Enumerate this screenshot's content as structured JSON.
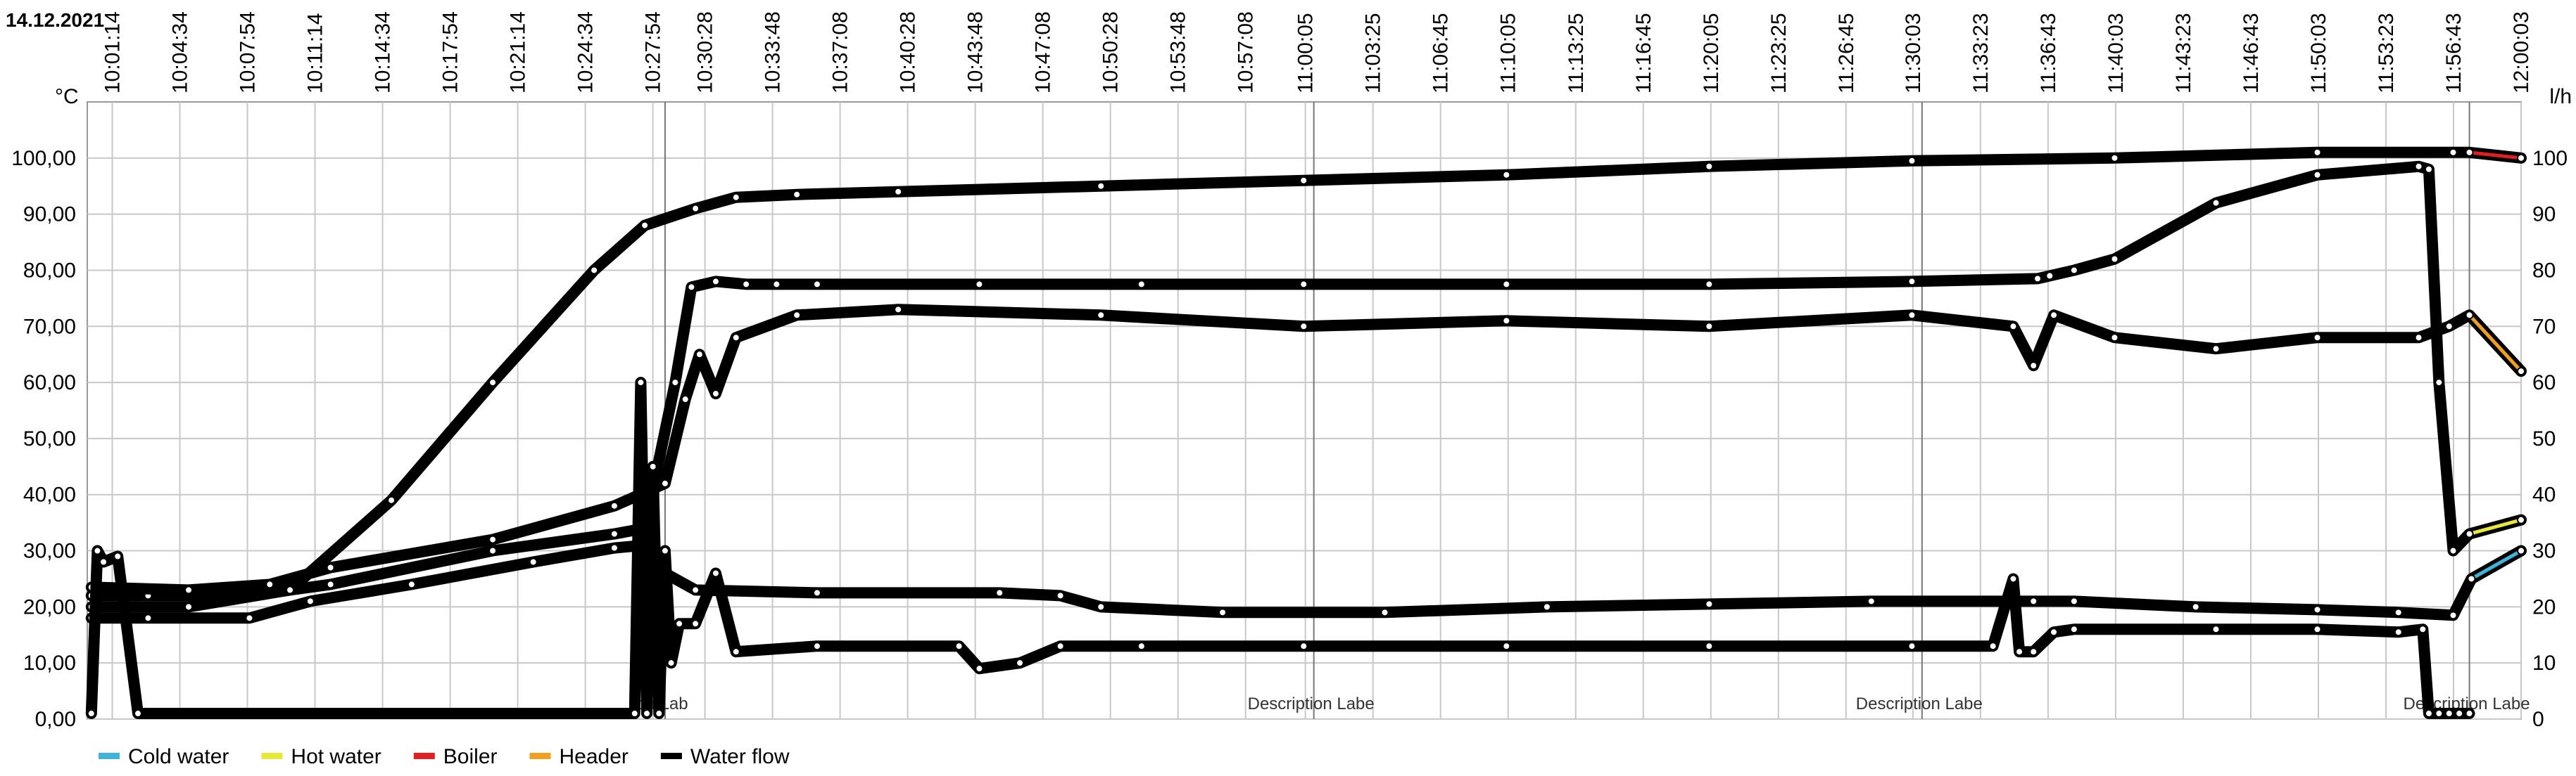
{
  "chart_data": {
    "type": "line",
    "date": "14.12.2021",
    "y_left_unit": "°C",
    "y_right_unit": "l/h",
    "ylim_left": [
      0,
      110
    ],
    "ylim_right": [
      0,
      110
    ],
    "y_left_ticks": [
      "0,00",
      "10,00",
      "20,00",
      "30,00",
      "40,00",
      "50,00",
      "60,00",
      "70,00",
      "80,00",
      "90,00",
      "100,00"
    ],
    "y_right_ticks": [
      "0",
      "10",
      "20",
      "30",
      "40",
      "50",
      "60",
      "70",
      "80",
      "90",
      "100"
    ],
    "x_ticks": [
      "10:01:14",
      "10:04:34",
      "10:07:54",
      "10:11:14",
      "10:14:34",
      "10:17:54",
      "10:21:14",
      "10:24:34",
      "10:27:54",
      "10:30:28",
      "10:33:48",
      "10:37:08",
      "10:40:28",
      "10:43:48",
      "10:47:08",
      "10:50:28",
      "10:53:48",
      "10:57:08",
      "11:00:05",
      "11:03:25",
      "11:06:45",
      "11:10:05",
      "11:13:25",
      "11:16:45",
      "11:20:05",
      "11:23:25",
      "11:26:45",
      "11:30:03",
      "11:33:23",
      "11:36:43",
      "11:40:03",
      "11:43:23",
      "11:46:43",
      "11:50:03",
      "11:53:23",
      "11:56:43",
      "12:00:03"
    ],
    "x_minutes": [
      1.233,
      4.567,
      7.9,
      11.233,
      14.567,
      17.9,
      21.233,
      24.567,
      27.9,
      30.467,
      33.8,
      37.133,
      40.467,
      43.8,
      47.133,
      50.467,
      53.8,
      57.133,
      60.083,
      63.417,
      66.75,
      70.083,
      73.417,
      76.75,
      80.083,
      83.417,
      86.75,
      90.05,
      93.383,
      96.717,
      100.05,
      103.383,
      106.717,
      110.05,
      113.383,
      116.717,
      120.05
    ],
    "grid": true,
    "description_labels": [
      "on Lab",
      "Description Labe",
      "Description Labe",
      "Description Labe"
    ],
    "description_minutes": [
      28.5,
      60.5,
      90.5,
      117.5
    ],
    "legend_position": "bottom-left",
    "series": [
      {
        "name": "Cold water",
        "color": "#3fb4d8",
        "x": [
          0.2,
          3,
          8,
          11,
          16,
          22,
          26,
          27.5,
          28.5,
          30,
          36,
          45,
          48,
          50,
          56,
          64,
          72,
          80,
          88,
          96,
          98,
          104,
          110,
          114,
          116.7,
          117.6,
          120.05
        ],
        "y": [
          18.0,
          18.0,
          18.0,
          21.0,
          24.0,
          28.0,
          30.5,
          31.0,
          26.0,
          23.0,
          22.5,
          22.5,
          22.0,
          20.0,
          19.0,
          19.0,
          20.0,
          20.5,
          21.0,
          21.0,
          21.0,
          20.0,
          19.5,
          19.0,
          18.5,
          25.0,
          30.0
        ]
      },
      {
        "name": "Hot water",
        "color": "#e8e83a",
        "x": [
          0.2,
          3,
          8,
          12,
          20,
          26,
          27.5,
          29,
          29.8,
          31,
          32.5,
          34,
          36,
          44,
          52,
          60,
          70,
          80,
          90,
          96.2,
          96.8,
          98,
          100,
          105,
          110,
          115,
          115.5,
          116,
          116.7,
          117.5,
          120.05
        ],
        "y": [
          22.0,
          22.0,
          22.0,
          24.0,
          30.0,
          33.0,
          34.0,
          60.0,
          77.0,
          78.0,
          77.5,
          77.5,
          77.5,
          77.5,
          77.5,
          77.5,
          77.5,
          77.5,
          78.0,
          78.5,
          79.0,
          80.0,
          82.0,
          92.0,
          97.0,
          98.5,
          98.0,
          60.0,
          30.0,
          33.0,
          35.5
        ]
      },
      {
        "name": "Boiler",
        "color": "#e02020",
        "x": [
          0.2,
          5,
          10,
          15,
          20,
          25,
          27.5,
          30,
          32,
          35,
          40,
          50,
          60,
          70,
          80,
          90,
          100,
          110,
          116.7,
          117.5,
          120.05
        ],
        "y": [
          20.0,
          20.0,
          23.0,
          39.0,
          60.0,
          80.0,
          88.0,
          91.0,
          93.0,
          93.5,
          94.0,
          95.0,
          96.0,
          97.0,
          98.5,
          99.5,
          100.0,
          101.0,
          101.0,
          101.0,
          100.0
        ]
      },
      {
        "name": "Header",
        "color": "#f0a020",
        "x": [
          0.2,
          5,
          9,
          12,
          20,
          26,
          28.5,
          29.5,
          30.2,
          31,
          32,
          35,
          40,
          50,
          60,
          70,
          80,
          90,
          95,
          96,
          97,
          100,
          105,
          110,
          115,
          116.5,
          117.5,
          120.05
        ],
        "y": [
          23.5,
          23.0,
          24.0,
          27.0,
          32.0,
          38.0,
          42.0,
          57.0,
          65.0,
          58.0,
          68.0,
          72.0,
          73.0,
          72.0,
          70.0,
          71.0,
          70.0,
          72.0,
          70.0,
          63.0,
          72.0,
          68.0,
          66.0,
          68.0,
          68.0,
          70.0,
          72.0,
          62.0
        ]
      },
      {
        "name": "Water flow",
        "color": "#000000",
        "x": [
          0.2,
          0.5,
          0.8,
          1.5,
          2.5,
          27,
          27.3,
          27.6,
          27.9,
          28.2,
          28.5,
          28.8,
          29.2,
          30,
          31,
          32,
          36,
          43,
          44,
          46,
          48,
          52,
          60,
          70,
          80,
          90,
          94,
          95,
          95.3,
          96,
          97,
          98,
          105,
          110,
          114,
          115.2,
          115.5,
          116,
          116.5,
          117,
          117.5
        ],
        "y": [
          1.0,
          30.0,
          28.0,
          29.0,
          1.0,
          1.0,
          60.0,
          1.0,
          45.0,
          1.0,
          30.0,
          10.0,
          17.0,
          17.0,
          26.0,
          12.0,
          13.0,
          13.0,
          9.0,
          10.0,
          13.0,
          13.0,
          13.0,
          13.0,
          13.0,
          13.0,
          13.0,
          25.0,
          12.0,
          12.0,
          15.5,
          16.0,
          16.0,
          16.0,
          15.5,
          16.0,
          1.0,
          1.0,
          1.0,
          1.0,
          1.0
        ]
      }
    ]
  }
}
